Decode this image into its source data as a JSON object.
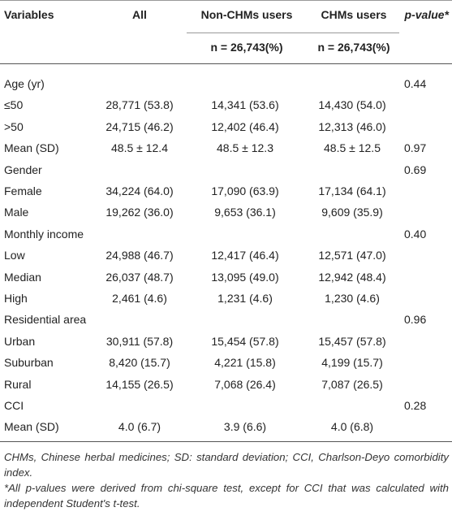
{
  "table": {
    "header": {
      "variables": "Variables",
      "all": "All",
      "non_chms": "Non-CHMs users",
      "chms": "CHMs users",
      "p_value": "p-value*",
      "non_chms_n": "n = 26,743(%)",
      "chms_n": "n = 26,743(%)"
    },
    "rows": [
      {
        "label": "Age (yr)",
        "p": "0.44"
      },
      {
        "label": "≤50",
        "values": [
          "28,771 (53.8)",
          "14,341 (53.6)",
          "14,430 (54.0)"
        ]
      },
      {
        "label": ">50",
        "values": [
          "24,715 (46.2)",
          "12,402 (46.4)",
          "12,313 (46.0)"
        ]
      },
      {
        "label": "Mean (SD)",
        "values": [
          "48.5 ± 12.4",
          "48.5 ± 12.3",
          "48.5 ± 12.5"
        ],
        "p": "0.97"
      },
      {
        "label": "Gender",
        "p": "0.69"
      },
      {
        "label": "Female",
        "values": [
          "34,224 (64.0)",
          "17,090 (63.9)",
          "17,134 (64.1)"
        ]
      },
      {
        "label": "Male",
        "values": [
          "19,262 (36.0)",
          "9,653 (36.1)",
          "9,609 (35.9)"
        ]
      },
      {
        "label": "Monthly income",
        "p": "0.40"
      },
      {
        "label": "Low",
        "values": [
          "24,988 (46.7)",
          "12,417 (46.4)",
          "12,571 (47.0)"
        ]
      },
      {
        "label": "Median",
        "values": [
          "26,037 (48.7)",
          "13,095 (49.0)",
          "12,942 (48.4)"
        ]
      },
      {
        "label": "High",
        "values": [
          "2,461 (4.6)",
          "1,231 (4.6)",
          "1,230 (4.6)"
        ]
      },
      {
        "label": "Residential area",
        "p": "0.96"
      },
      {
        "label": "Urban",
        "values": [
          "30,911 (57.8)",
          "15,454 (57.8)",
          "15,457 (57.8)"
        ]
      },
      {
        "label": "Suburban",
        "values": [
          "8,420 (15.7)",
          "4,221 (15.8)",
          "4,199 (15.7)"
        ]
      },
      {
        "label": "Rural",
        "values": [
          "14,155 (26.5)",
          "7,068 (26.4)",
          "7,087 (26.5)"
        ]
      },
      {
        "label": "CCI",
        "p": "0.28"
      },
      {
        "label": "Mean (SD)",
        "values": [
          "4.0 (6.7)",
          "3.9 (6.6)",
          "4.0 (6.8)"
        ]
      }
    ],
    "footnotes": [
      "CHMs, Chinese herbal medicines; SD: standard deviation; CCI, Charlson-Deyo comorbidity index.",
      "*All p-values were derived from chi-square test, except for CCI that was calculated with independent Student's t-test."
    ]
  }
}
